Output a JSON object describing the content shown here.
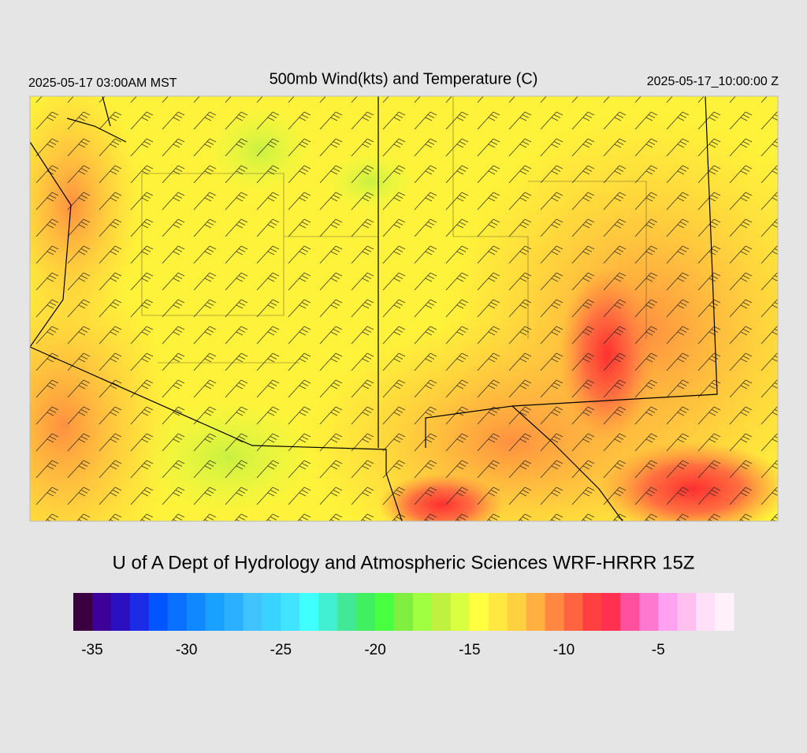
{
  "header": {
    "left": "2025-05-17 03:00AM MST",
    "title": "500mb Wind(kts) and Temperature (C)",
    "right": "2025-05-17_10:00:00 Z"
  },
  "credit": "U of A Dept of Hydrology and Atmospheric Sciences WRF-HRRR 15Z",
  "colorbar": {
    "lim": [
      -36,
      -1
    ],
    "ticks": [
      -35,
      -30,
      -25,
      -20,
      -15,
      -10,
      -5
    ],
    "colors": [
      "#3a0040",
      "#3d0099",
      "#2a10c0",
      "#1a2ce8",
      "#0055ff",
      "#0a70ff",
      "#1088ff",
      "#1aa0ff",
      "#2ab0ff",
      "#40c4ff",
      "#38d4ff",
      "#40e4ff",
      "#40ffff",
      "#40f0d0",
      "#40e898",
      "#40f060",
      "#48ff40",
      "#80f040",
      "#a0ff40",
      "#c0f040",
      "#d8ff40",
      "#ffff40",
      "#ffe840",
      "#ffd040",
      "#ffb040",
      "#ff8840",
      "#ff6440",
      "#ff4040",
      "#ff3050",
      "#ff50a0",
      "#ff78d0",
      "#ffa0f0",
      "#ffc0f0",
      "#ffe0f8",
      "#fff0fa"
    ]
  }
}
